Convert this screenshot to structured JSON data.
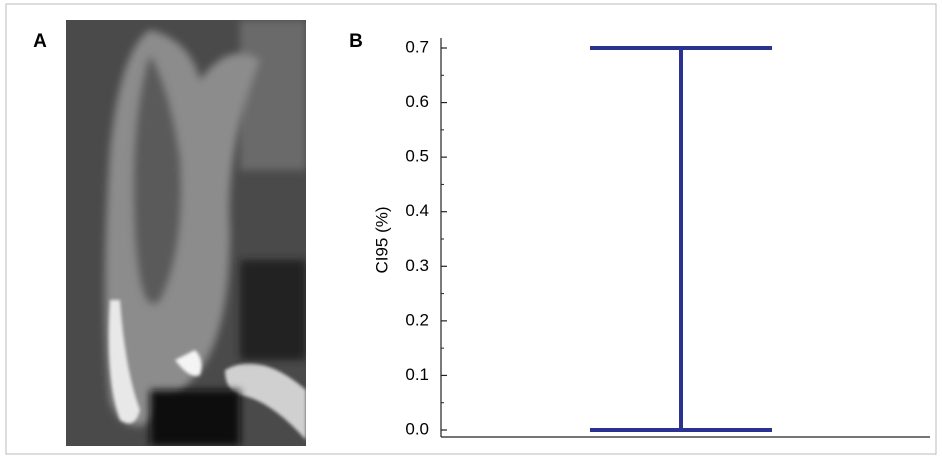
{
  "panel_labels": [
    "A",
    "B"
  ],
  "chart_data": {
    "type": "interval",
    "ylabel": "CI95 (%)",
    "intervals": [
      {
        "low": 0,
        "high": 0.7
      }
    ],
    "color": "#2b3191",
    "ylim": [
      0,
      0.7
    ],
    "yticks": [
      {
        "value": 0,
        "label": "0.0"
      },
      0.1,
      0.2,
      0.3,
      0.4,
      0.5,
      0.6,
      0.7
    ],
    "grid": false
  }
}
